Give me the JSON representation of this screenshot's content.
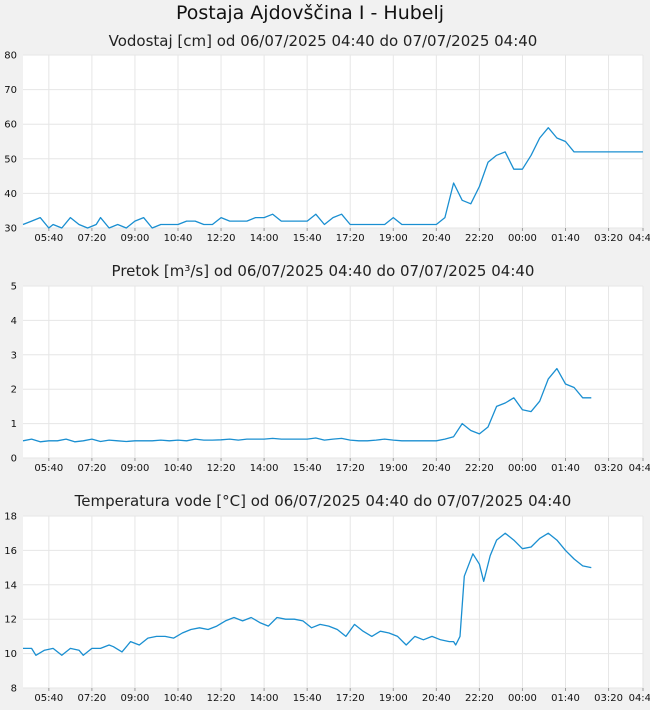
{
  "title": "Postaja Ajdovščina I - Hubelj",
  "colors": {
    "line": "#1a8fd1",
    "plot_bg": "#ffffff",
    "grid": "#e6e6e6",
    "page_bg": "#f1f1f1"
  },
  "chart_data": [
    {
      "type": "line",
      "title": "Vodostaj [cm] od 06/07/2025 04:40 do 07/07/2025 04:40",
      "xlabel": "",
      "ylabel": "",
      "ylim": [
        30,
        80
      ],
      "yticks": [
        "30",
        "40",
        "50",
        "60",
        "70",
        "80"
      ],
      "xticks": [
        "05:40",
        "07:20",
        "09:00",
        "10:40",
        "12:20",
        "14:00",
        "15:40",
        "17:20",
        "19:00",
        "20:40",
        "22:20",
        "00:00",
        "01:40",
        "03:20",
        "04:40"
      ],
      "grid": true,
      "series": [
        {
          "x": [
            0,
            20,
            40,
            60,
            70,
            90,
            110,
            130,
            150,
            170,
            180,
            200,
            220,
            240,
            260,
            280,
            300,
            320,
            340,
            360,
            380,
            400,
            420,
            440,
            460,
            480,
            500,
            520,
            540,
            560,
            580,
            600,
            620,
            640,
            660,
            680,
            700,
            720,
            740,
            760,
            780,
            800,
            820,
            840,
            860,
            880,
            900,
            920,
            940,
            960,
            980,
            1000,
            1020,
            1040,
            1060,
            1080,
            1100,
            1120,
            1140,
            1160,
            1180,
            1200,
            1220,
            1240,
            1260,
            1280,
            1300,
            1320,
            1340,
            1360,
            1380,
            1400,
            1420,
            1440
          ],
          "values": [
            31,
            32,
            33,
            30,
            31,
            30,
            33,
            31,
            30,
            31,
            33,
            30,
            31,
            30,
            32,
            33,
            30,
            31,
            31,
            31,
            32,
            32,
            31,
            31,
            33,
            32,
            32,
            32,
            33,
            33,
            34,
            32,
            32,
            32,
            32,
            34,
            31,
            33,
            34,
            31,
            31,
            31,
            31,
            31,
            33,
            31,
            31,
            31,
            31,
            31,
            33,
            43,
            38,
            37,
            42,
            49,
            51,
            52,
            47,
            47,
            51,
            56,
            59,
            56,
            55,
            52,
            52,
            52,
            52,
            52,
            52,
            52,
            52,
            52
          ]
        }
      ]
    },
    {
      "type": "line",
      "title": "Pretok [m³/s] od 06/07/2025 04:40 do 07/07/2025 04:40",
      "xlabel": "",
      "ylabel": "",
      "ylim": [
        0,
        5
      ],
      "yticks": [
        "0",
        "1",
        "2",
        "3",
        "4",
        "5"
      ],
      "xticks": [
        "05:40",
        "07:20",
        "09:00",
        "10:40",
        "12:20",
        "14:00",
        "15:40",
        "17:20",
        "19:00",
        "20:40",
        "22:20",
        "00:00",
        "01:40",
        "03:20",
        "04:40"
      ],
      "grid": true,
      "series": [
        {
          "x": [
            0,
            20,
            40,
            60,
            80,
            100,
            120,
            140,
            160,
            180,
            200,
            220,
            240,
            260,
            280,
            300,
            320,
            340,
            360,
            380,
            400,
            420,
            440,
            460,
            480,
            500,
            520,
            540,
            560,
            580,
            600,
            620,
            640,
            660,
            680,
            700,
            720,
            740,
            760,
            780,
            800,
            820,
            840,
            860,
            880,
            900,
            920,
            940,
            960,
            980,
            1000,
            1020,
            1040,
            1060,
            1080,
            1100,
            1120,
            1140,
            1160,
            1180,
            1200,
            1220,
            1240,
            1260,
            1280,
            1300,
            1320
          ],
          "values": [
            0.5,
            0.55,
            0.47,
            0.5,
            0.5,
            0.55,
            0.47,
            0.5,
            0.55,
            0.48,
            0.52,
            0.5,
            0.48,
            0.5,
            0.5,
            0.5,
            0.52,
            0.5,
            0.52,
            0.5,
            0.55,
            0.52,
            0.52,
            0.53,
            0.55,
            0.52,
            0.55,
            0.55,
            0.55,
            0.57,
            0.55,
            0.55,
            0.55,
            0.55,
            0.58,
            0.52,
            0.55,
            0.57,
            0.52,
            0.5,
            0.5,
            0.52,
            0.55,
            0.52,
            0.5,
            0.5,
            0.5,
            0.5,
            0.5,
            0.55,
            0.62,
            1.0,
            0.8,
            0.7,
            0.9,
            1.5,
            1.6,
            1.75,
            1.4,
            1.35,
            1.65,
            2.3,
            2.6,
            2.15,
            2.05,
            1.75,
            1.75
          ]
        }
      ]
    },
    {
      "type": "line",
      "title": "Temperatura vode [°C] od 06/07/2025 04:40 do 07/07/2025 04:40",
      "xlabel": "",
      "ylabel": "",
      "ylim": [
        8,
        18
      ],
      "yticks": [
        "8",
        "10",
        "12",
        "14",
        "16",
        "18"
      ],
      "xticks": [
        "05:40",
        "07:20",
        "09:00",
        "10:40",
        "12:20",
        "14:00",
        "15:40",
        "17:20",
        "19:00",
        "20:40",
        "22:20",
        "00:00",
        "01:40",
        "03:20",
        "04:40"
      ],
      "grid": true,
      "series": [
        {
          "x": [
            0,
            20,
            30,
            50,
            70,
            90,
            110,
            130,
            140,
            160,
            180,
            200,
            210,
            230,
            250,
            270,
            290,
            310,
            330,
            350,
            370,
            390,
            410,
            430,
            450,
            470,
            490,
            510,
            530,
            550,
            570,
            590,
            610,
            630,
            650,
            670,
            690,
            710,
            730,
            750,
            770,
            790,
            810,
            830,
            850,
            870,
            890,
            910,
            930,
            950,
            970,
            990,
            1000,
            1005,
            1015,
            1025,
            1045,
            1060,
            1070,
            1085,
            1100,
            1120,
            1140,
            1160,
            1180,
            1200,
            1220,
            1240,
            1260,
            1280,
            1300,
            1320
          ],
          "values": [
            10.3,
            10.3,
            9.9,
            10.2,
            10.3,
            9.9,
            10.3,
            10.2,
            9.9,
            10.3,
            10.3,
            10.5,
            10.4,
            10.1,
            10.7,
            10.5,
            10.9,
            11.0,
            11.0,
            10.9,
            11.2,
            11.4,
            11.5,
            11.4,
            11.6,
            11.9,
            12.1,
            11.9,
            12.1,
            11.8,
            11.6,
            12.1,
            12.0,
            12.0,
            11.9,
            11.5,
            11.7,
            11.6,
            11.4,
            11.0,
            11.7,
            11.3,
            11.0,
            11.3,
            11.2,
            11.0,
            10.5,
            11.0,
            10.8,
            11.0,
            10.8,
            10.7,
            10.7,
            10.5,
            11.0,
            14.5,
            15.8,
            15.2,
            14.2,
            15.7,
            16.6,
            17.0,
            16.6,
            16.1,
            16.2,
            16.7,
            17.0,
            16.6,
            16.0,
            15.5,
            15.1,
            15.0
          ]
        }
      ]
    }
  ]
}
